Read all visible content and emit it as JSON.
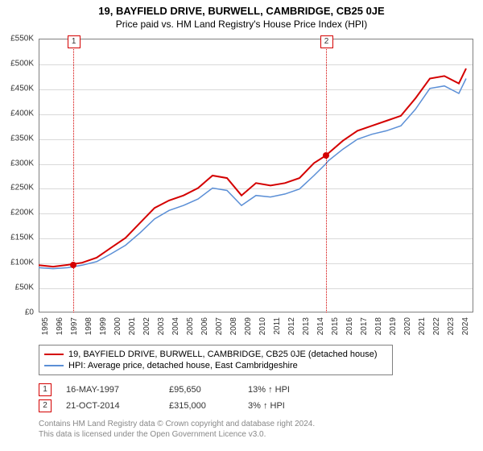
{
  "title": "19, BAYFIELD DRIVE, BURWELL, CAMBRIDGE, CB25 0JE",
  "subtitle": "Price paid vs. HM Land Registry's House Price Index (HPI)",
  "chart": {
    "type": "line",
    "background_color": "#ffffff",
    "grid_color": "#d9d9d9",
    "axis_color": "#808080",
    "ylim": [
      0,
      550000
    ],
    "ytick_step": 50000,
    "yticks": [
      "£0",
      "£50K",
      "£100K",
      "£150K",
      "£200K",
      "£250K",
      "£300K",
      "£350K",
      "£400K",
      "£450K",
      "£500K",
      "£550K"
    ],
    "xlim": [
      1995,
      2025
    ],
    "xticks": [
      1995,
      1996,
      1997,
      1998,
      1999,
      2000,
      2001,
      2002,
      2003,
      2004,
      2005,
      2006,
      2007,
      2008,
      2009,
      2010,
      2011,
      2012,
      2013,
      2014,
      2015,
      2016,
      2017,
      2018,
      2019,
      2020,
      2021,
      2022,
      2023,
      2024
    ],
    "series": [
      {
        "name": "19, BAYFIELD DRIVE, BURWELL, CAMBRIDGE, CB25 0JE (detached house)",
        "color": "#d40000",
        "line_width": 2,
        "data": [
          [
            1995,
            95000
          ],
          [
            1996,
            92000
          ],
          [
            1997,
            95650
          ],
          [
            1998,
            100000
          ],
          [
            1999,
            110000
          ],
          [
            2000,
            130000
          ],
          [
            2001,
            150000
          ],
          [
            2002,
            180000
          ],
          [
            2003,
            210000
          ],
          [
            2004,
            225000
          ],
          [
            2005,
            235000
          ],
          [
            2006,
            250000
          ],
          [
            2007,
            275000
          ],
          [
            2008,
            270000
          ],
          [
            2009,
            235000
          ],
          [
            2010,
            260000
          ],
          [
            2011,
            255000
          ],
          [
            2012,
            260000
          ],
          [
            2013,
            270000
          ],
          [
            2014,
            300000
          ],
          [
            2014.8,
            315000
          ],
          [
            2015,
            320000
          ],
          [
            2016,
            345000
          ],
          [
            2017,
            365000
          ],
          [
            2018,
            375000
          ],
          [
            2019,
            385000
          ],
          [
            2020,
            395000
          ],
          [
            2021,
            430000
          ],
          [
            2022,
            470000
          ],
          [
            2023,
            475000
          ],
          [
            2024,
            460000
          ],
          [
            2024.5,
            490000
          ]
        ]
      },
      {
        "name": "HPI: Average price, detached house, East Cambridgeshire",
        "color": "#5b8fd6",
        "line_width": 1.5,
        "data": [
          [
            1995,
            90000
          ],
          [
            1996,
            88000
          ],
          [
            1997,
            90000
          ],
          [
            1998,
            95000
          ],
          [
            1999,
            102000
          ],
          [
            2000,
            118000
          ],
          [
            2001,
            135000
          ],
          [
            2002,
            160000
          ],
          [
            2003,
            188000
          ],
          [
            2004,
            205000
          ],
          [
            2005,
            215000
          ],
          [
            2006,
            228000
          ],
          [
            2007,
            250000
          ],
          [
            2008,
            245000
          ],
          [
            2009,
            215000
          ],
          [
            2010,
            235000
          ],
          [
            2011,
            232000
          ],
          [
            2012,
            238000
          ],
          [
            2013,
            248000
          ],
          [
            2014,
            275000
          ],
          [
            2014.8,
            298000
          ],
          [
            2015,
            305000
          ],
          [
            2016,
            328000
          ],
          [
            2017,
            348000
          ],
          [
            2018,
            358000
          ],
          [
            2019,
            365000
          ],
          [
            2020,
            375000
          ],
          [
            2021,
            408000
          ],
          [
            2022,
            450000
          ],
          [
            2023,
            455000
          ],
          [
            2024,
            440000
          ],
          [
            2024.5,
            470000
          ]
        ]
      }
    ],
    "markers": [
      {
        "n": "1",
        "x": 1997.37,
        "y": 95650,
        "color": "#d40000"
      },
      {
        "n": "2",
        "x": 2014.81,
        "y": 315000,
        "color": "#d40000"
      }
    ],
    "label_fontsize": 10,
    "title_fontsize": 13
  },
  "legend": {
    "items": [
      {
        "color": "#d40000",
        "label": "19, BAYFIELD DRIVE, BURWELL, CAMBRIDGE, CB25 0JE (detached house)"
      },
      {
        "color": "#5b8fd6",
        "label": "HPI: Average price, detached house, East Cambridgeshire"
      }
    ]
  },
  "sales": [
    {
      "n": "1",
      "color": "#d40000",
      "date": "16-MAY-1997",
      "price": "£95,650",
      "hpi": "13% ↑ HPI"
    },
    {
      "n": "2",
      "color": "#d40000",
      "date": "21-OCT-2014",
      "price": "£315,000",
      "hpi": "3% ↑ HPI"
    }
  ],
  "footer": {
    "line1": "Contains HM Land Registry data © Crown copyright and database right 2024.",
    "line2": "This data is licensed under the Open Government Licence v3.0."
  }
}
